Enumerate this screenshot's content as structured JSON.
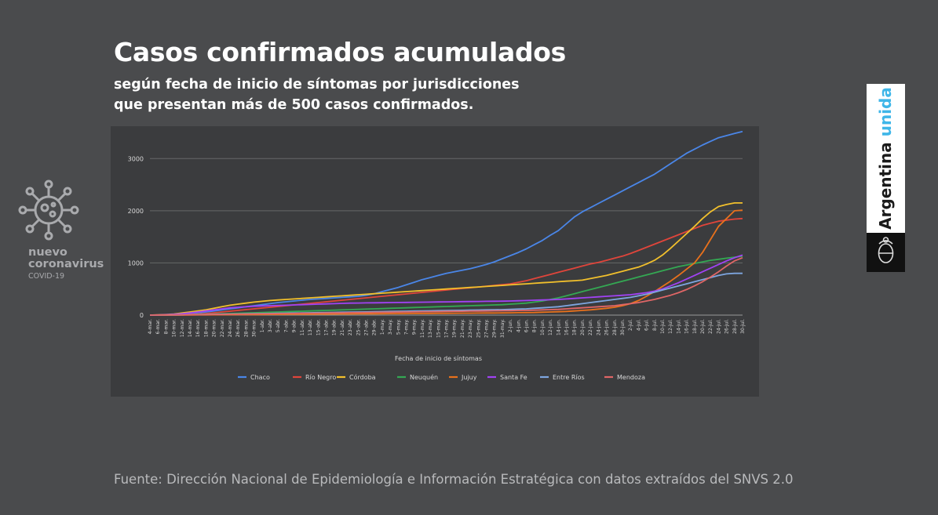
{
  "header": {
    "title": "Casos confirmados acumulados",
    "subtitle_line1": "según fecha de inicio de síntomas por jurisdicciones",
    "subtitle_line2": "que presentan más de 500 casos confirmados."
  },
  "brand_left": {
    "line1": "nuevo",
    "line2": "coronavirus",
    "line3": "COVID-19",
    "icon": "virus-icon"
  },
  "brand_right": {
    "word1": "Argentina",
    "word2": "unida",
    "accent_color": "#3fb6e8",
    "icon": "argentina-seal-icon"
  },
  "source": "Fuente: Dirección Nacional de Epidemiología e Información Estratégica con datos extraídos del SNVS 2.0",
  "chart_data": {
    "type": "line",
    "title": "Casos confirmados acumulados",
    "xlabel": "Fecha de inicio de síntomas",
    "ylabel": "",
    "ylim": [
      0,
      3500
    ],
    "yticks": [
      0,
      1000,
      2000,
      3000
    ],
    "grid": true,
    "legend_position": "bottom",
    "x": [
      "4-mar.",
      "6-mar.",
      "8-mar.",
      "10-mar.",
      "12-mar.",
      "14-mar.",
      "16-mar.",
      "18-mar.",
      "20-mar.",
      "22-mar.",
      "24-mar.",
      "26-mar.",
      "28-mar.",
      "30-mar.",
      "1-abr.",
      "3-abr.",
      "5-abr.",
      "7-abr.",
      "9-abr.",
      "11-abr.",
      "13-abr.",
      "15-abr.",
      "17-abr.",
      "19-abr.",
      "21-abr.",
      "23-abr.",
      "25-abr.",
      "27-abr.",
      "29-abr.",
      "1-may.",
      "3-may.",
      "5-may.",
      "7-may.",
      "9-may.",
      "11-may.",
      "13-may.",
      "15-may.",
      "17-may.",
      "19-may.",
      "21-may.",
      "23-may.",
      "25-may.",
      "27-may.",
      "29-may.",
      "31-may.",
      "2-jun.",
      "4-jun.",
      "6-jun.",
      "8-jun.",
      "10-jun.",
      "12-jun.",
      "14-jun.",
      "16-jun.",
      "18-jun.",
      "20-jun.",
      "22-jun.",
      "24-jun.",
      "26-jun.",
      "28-jun.",
      "30-jun.",
      "2-jul.",
      "4-jul.",
      "6-jul.",
      "8-jul.",
      "10-jul.",
      "12-jul.",
      "14-jul.",
      "16-jul.",
      "18-jul.",
      "20-jul.",
      "22-jul.",
      "24-jul.",
      "26-jul.",
      "28-jul.",
      "30-jul."
    ],
    "series": [
      {
        "name": "Chaco",
        "color": "#4a86e8",
        "values": [
          0,
          2,
          5,
          10,
          20,
          30,
          45,
          60,
          80,
          100,
          120,
          140,
          160,
          180,
          200,
          220,
          240,
          255,
          270,
          285,
          300,
          310,
          320,
          330,
          340,
          350,
          360,
          380,
          410,
          450,
          490,
          530,
          580,
          630,
          680,
          720,
          760,
          800,
          830,
          860,
          890,
          930,
          970,
          1020,
          1080,
          1140,
          1200,
          1270,
          1350,
          1430,
          1530,
          1620,
          1750,
          1880,
          1980,
          2060,
          2140,
          2220,
          2300,
          2380,
          2460,
          2540,
          2620,
          2700,
          2800,
          2900,
          3000,
          3100,
          3180,
          3260,
          3330,
          3400,
          3440,
          3480,
          3520
        ]
      },
      {
        "name": "Río Negro",
        "color": "#e0453b",
        "values": [
          0,
          1,
          2,
          4,
          8,
          12,
          20,
          30,
          45,
          60,
          75,
          90,
          105,
          120,
          135,
          150,
          165,
          180,
          195,
          210,
          225,
          240,
          255,
          270,
          285,
          300,
          315,
          330,
          345,
          360,
          375,
          390,
          405,
          420,
          435,
          450,
          465,
          480,
          495,
          510,
          525,
          540,
          555,
          570,
          585,
          600,
          630,
          660,
          700,
          740,
          780,
          820,
          860,
          900,
          940,
          980,
          1010,
          1050,
          1090,
          1130,
          1180,
          1240,
          1300,
          1360,
          1420,
          1480,
          1540,
          1600,
          1660,
          1720,
          1760,
          1800,
          1820,
          1840,
          1850
        ]
      },
      {
        "name": "Córdoba",
        "color": "#f2c02c",
        "values": [
          0,
          5,
          10,
          20,
          40,
          60,
          80,
          100,
          130,
          160,
          190,
          210,
          230,
          250,
          265,
          280,
          290,
          300,
          310,
          320,
          330,
          340,
          350,
          360,
          370,
          380,
          390,
          400,
          410,
          420,
          430,
          440,
          450,
          460,
          470,
          480,
          490,
          500,
          510,
          520,
          530,
          540,
          550,
          560,
          570,
          580,
          590,
          600,
          610,
          620,
          630,
          640,
          650,
          660,
          670,
          700,
          730,
          760,
          800,
          840,
          880,
          920,
          980,
          1050,
          1150,
          1280,
          1420,
          1560,
          1700,
          1850,
          1980,
          2080,
          2120,
          2150,
          2150
        ]
      },
      {
        "name": "Neuquén",
        "color": "#34a853",
        "values": [
          0,
          1,
          2,
          3,
          5,
          8,
          12,
          16,
          20,
          25,
          30,
          35,
          40,
          45,
          50,
          55,
          60,
          65,
          70,
          75,
          80,
          85,
          90,
          95,
          100,
          105,
          110,
          115,
          120,
          125,
          130,
          135,
          140,
          145,
          150,
          155,
          160,
          165,
          170,
          175,
          180,
          185,
          190,
          195,
          200,
          210,
          220,
          230,
          250,
          270,
          300,
          330,
          370,
          410,
          450,
          490,
          530,
          570,
          610,
          650,
          690,
          730,
          770,
          810,
          850,
          890,
          930,
          960,
          990,
          1020,
          1050,
          1070,
          1090,
          1110,
          1130
        ]
      },
      {
        "name": "Jujuy",
        "color": "#e8711c",
        "values": [
          0,
          0,
          0,
          1,
          2,
          3,
          4,
          5,
          6,
          7,
          8,
          9,
          10,
          11,
          12,
          13,
          14,
          15,
          16,
          17,
          18,
          19,
          20,
          21,
          22,
          23,
          24,
          25,
          26,
          27,
          28,
          29,
          30,
          31,
          32,
          33,
          34,
          35,
          36,
          37,
          38,
          39,
          40,
          41,
          42,
          44,
          46,
          48,
          50,
          55,
          60,
          65,
          70,
          80,
          90,
          100,
          115,
          130,
          150,
          180,
          220,
          280,
          360,
          450,
          550,
          650,
          760,
          880,
          1000,
          1200,
          1450,
          1700,
          1850,
          2000,
          2010
        ]
      },
      {
        "name": "Santa Fe",
        "color": "#a142f4",
        "values": [
          0,
          3,
          8,
          15,
          25,
          40,
          60,
          80,
          100,
          120,
          140,
          150,
          160,
          170,
          175,
          180,
          185,
          190,
          195,
          200,
          205,
          210,
          215,
          220,
          225,
          230,
          232,
          234,
          236,
          238,
          240,
          242,
          244,
          246,
          248,
          250,
          252,
          254,
          256,
          258,
          260,
          262,
          264,
          266,
          268,
          270,
          275,
          280,
          285,
          290,
          295,
          300,
          310,
          320,
          330,
          340,
          350,
          360,
          370,
          380,
          390,
          410,
          430,
          460,
          500,
          560,
          620,
          690,
          760,
          830,
          900,
          970,
          1040,
          1100,
          1150
        ]
      },
      {
        "name": "Entre Ríos",
        "color": "#7ea6e0",
        "values": [
          0,
          1,
          2,
          3,
          5,
          8,
          10,
          12,
          15,
          18,
          20,
          22,
          25,
          28,
          30,
          32,
          35,
          38,
          40,
          42,
          45,
          48,
          50,
          52,
          55,
          58,
          60,
          62,
          65,
          68,
          70,
          72,
          75,
          78,
          80,
          82,
          85,
          88,
          90,
          92,
          95,
          98,
          100,
          102,
          105,
          110,
          115,
          120,
          130,
          140,
          150,
          160,
          180,
          200,
          220,
          240,
          260,
          280,
          300,
          320,
          340,
          370,
          400,
          440,
          480,
          520,
          560,
          600,
          640,
          680,
          720,
          760,
          790,
          800,
          800
        ]
      },
      {
        "name": "Mendoza",
        "color": "#e06666",
        "values": [
          0,
          1,
          2,
          3,
          4,
          6,
          8,
          10,
          12,
          14,
          16,
          18,
          20,
          22,
          24,
          26,
          28,
          30,
          32,
          34,
          36,
          38,
          40,
          42,
          44,
          46,
          48,
          50,
          52,
          54,
          56,
          58,
          60,
          62,
          64,
          66,
          68,
          70,
          72,
          74,
          76,
          78,
          80,
          82,
          84,
          86,
          88,
          90,
          95,
          100,
          105,
          110,
          120,
          130,
          140,
          150,
          160,
          170,
          180,
          200,
          220,
          240,
          270,
          300,
          340,
          380,
          430,
          490,
          560,
          640,
          730,
          830,
          940,
          1040,
          1100
        ]
      }
    ]
  }
}
